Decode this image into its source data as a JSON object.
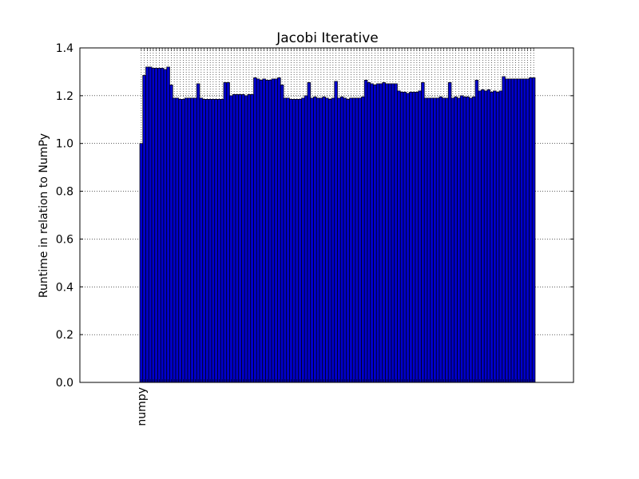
{
  "chart_data": {
    "type": "bar",
    "title": "Jacobi Iterative",
    "ylabel": "Runtime in relation to NumPy",
    "categories": [
      "numpy",
      null,
      null,
      null,
      null,
      null,
      null,
      null,
      null,
      null,
      null,
      null,
      null,
      null,
      null,
      null,
      null,
      null,
      null,
      null,
      null,
      null,
      null,
      null,
      null,
      null,
      null,
      null,
      null,
      null,
      null,
      null,
      null,
      null,
      null,
      null,
      null,
      null,
      null,
      null,
      null,
      null,
      null,
      null,
      null,
      null,
      null,
      null,
      null,
      null,
      null,
      null,
      null,
      null,
      null,
      null,
      null,
      null,
      null,
      null,
      null,
      null,
      null,
      null,
      null,
      null,
      null,
      null,
      null,
      null,
      null,
      null,
      null,
      null,
      null,
      null,
      null,
      null,
      null,
      null,
      null,
      null,
      null,
      null,
      null,
      null,
      null,
      null,
      null,
      null,
      null,
      null,
      null,
      null,
      null,
      null,
      null,
      null,
      null,
      null,
      null,
      null,
      null,
      null,
      null,
      null,
      null,
      null,
      null,
      null,
      null,
      null,
      null,
      null,
      null,
      null,
      null,
      null,
      null,
      null,
      null,
      null,
      null,
      null,
      null,
      null,
      null,
      null,
      null,
      null,
      null,
      null
    ],
    "values": [
      1.0,
      1.285,
      1.32,
      1.32,
      1.315,
      1.315,
      1.315,
      1.315,
      1.31,
      1.32,
      1.245,
      1.19,
      1.19,
      1.185,
      1.185,
      1.19,
      1.19,
      1.19,
      1.19,
      1.25,
      1.19,
      1.185,
      1.185,
      1.185,
      1.185,
      1.185,
      1.185,
      1.185,
      1.255,
      1.255,
      1.2,
      1.205,
      1.205,
      1.205,
      1.205,
      1.2,
      1.205,
      1.205,
      1.275,
      1.27,
      1.265,
      1.27,
      1.265,
      1.265,
      1.27,
      1.27,
      1.275,
      1.245,
      1.19,
      1.19,
      1.185,
      1.185,
      1.185,
      1.185,
      1.19,
      1.2,
      1.255,
      1.19,
      1.195,
      1.19,
      1.19,
      1.195,
      1.19,
      1.185,
      1.19,
      1.26,
      1.19,
      1.195,
      1.19,
      1.185,
      1.19,
      1.19,
      1.19,
      1.19,
      1.195,
      1.265,
      1.255,
      1.25,
      1.245,
      1.25,
      1.25,
      1.255,
      1.25,
      1.25,
      1.25,
      1.25,
      1.22,
      1.215,
      1.215,
      1.21,
      1.215,
      1.215,
      1.215,
      1.22,
      1.255,
      1.19,
      1.19,
      1.19,
      1.19,
      1.19,
      1.195,
      1.19,
      1.19,
      1.255,
      1.19,
      1.195,
      1.19,
      1.2,
      1.195,
      1.195,
      1.19,
      1.195,
      1.265,
      1.22,
      1.225,
      1.22,
      1.225,
      1.215,
      1.22,
      1.215,
      1.22,
      1.28,
      1.27,
      1.27,
      1.27,
      1.27,
      1.27,
      1.27,
      1.27,
      1.27,
      1.275,
      1.275
    ],
    "color": "#0000cc",
    "ylim": [
      0,
      1.4
    ],
    "yticks": [
      {
        "value": 0,
        "label": "0.0"
      },
      0.2,
      0.4,
      0.6,
      0.8,
      {
        "value": 1,
        "label": "1.0"
      },
      1.2,
      1.4
    ],
    "grid": true
  }
}
